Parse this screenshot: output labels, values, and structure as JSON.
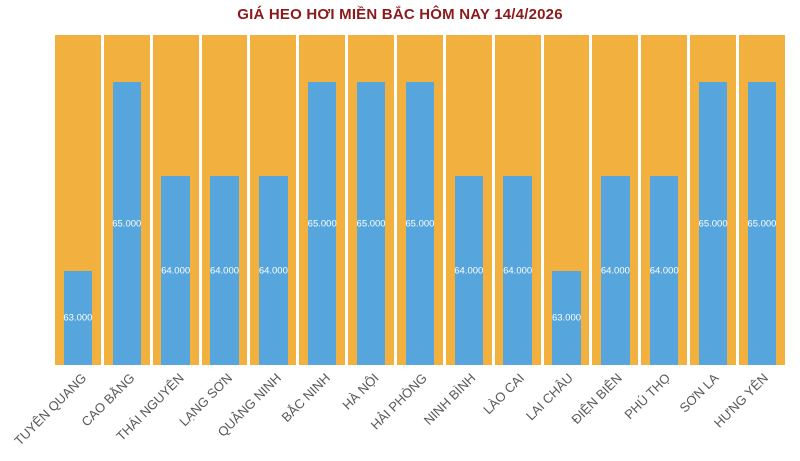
{
  "chart_data": {
    "type": "bar",
    "title": "GIÁ HEO HƠI MIỀN BẮC HÔM NAY 14/4/2026",
    "categories": [
      "TUYÊN QUANG",
      "CAO BẰNG",
      "THÁI NGUYÊN",
      "LẠNG SƠN",
      "QUẢNG NINH",
      "BẮC NINH",
      "HÀ NỘI",
      "HẢI PHÒNG",
      "NINH BÌNH",
      "LÀO CAI",
      "LAI CHÂU",
      "ĐIỆN BIÊN",
      "PHÚ THỌ",
      "SƠN LA",
      "HƯNG YÊN"
    ],
    "values": [
      63000,
      65000,
      64000,
      64000,
      64000,
      65000,
      65000,
      65000,
      64000,
      64000,
      63000,
      64000,
      64000,
      65000,
      65000
    ],
    "value_labels": [
      "63.000",
      "65.000",
      "64.000",
      "64.000",
      "64.000",
      "65.000",
      "65.000",
      "65.000",
      "64.000",
      "64.000",
      "63.000",
      "64.000",
      "64.000",
      "65.000",
      "65.000"
    ],
    "xlabel": "",
    "ylabel": "",
    "ylim": [
      62000,
      65500
    ],
    "grid": false,
    "legend": false,
    "colors": {
      "bar": "#56A5DD",
      "plot_background": "#F2B13E",
      "title": "#8B1A1A",
      "axis_label": "#595959",
      "value_label": "#FFFFFF",
      "page_background": "#FFFFFF"
    }
  }
}
